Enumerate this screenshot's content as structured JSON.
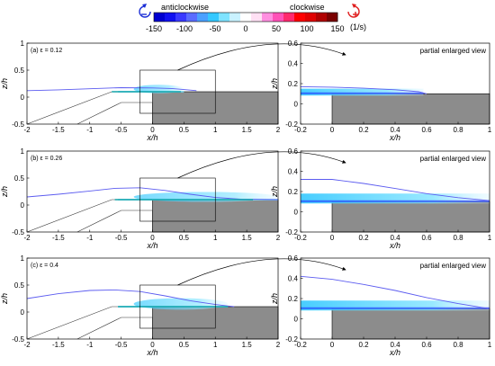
{
  "colorbar": {
    "left_label": "anticlockwise",
    "right_label": "clockwise",
    "unit": "(1/s)",
    "ticks": [
      -150,
      -100,
      -50,
      0,
      50,
      100,
      150
    ],
    "tick_labels": [
      "-150",
      "-100",
      "-50",
      "0",
      "50",
      "100",
      "150"
    ],
    "range": [
      -150,
      150
    ],
    "colors": [
      "#0000d0",
      "#1111f0",
      "#3a3aff",
      "#5a6cff",
      "#4aa0ff",
      "#34c8ff",
      "#7fe3ff",
      "#c9f2ff",
      "#ffffff",
      "#ffe0f4",
      "#ff8fe0",
      "#ff52b8",
      "#ff2a6e",
      "#ff0000",
      "#e00000",
      "#b00000",
      "#7a0000"
    ],
    "anticlockwise_icon_color": "#1c2fd6",
    "clockwise_icon_color": "#e02020"
  },
  "chart_data": [
    {
      "panel": "full",
      "label": "(a) ε = 0.12",
      "epsilon": 0.12,
      "type": "line",
      "xlabel": "x/h",
      "ylabel": "z/h",
      "xlim": [
        -2,
        2
      ],
      "ylim": [
        -0.5,
        1
      ],
      "xticks": [
        "-2",
        "-1.5",
        "-1",
        "-0.5",
        "0",
        "0.5",
        "1",
        "1.5",
        "2"
      ],
      "yticks": [
        "-0.5",
        "0",
        "0.5",
        "1"
      ],
      "series": [
        {
          "role": "boundary-curve",
          "color": "#5c5cf0",
          "x": [
            -2,
            -1.5,
            -1,
            -0.5,
            0,
            0.3,
            0.5,
            0.7
          ],
          "y": [
            0.12,
            0.135,
            0.155,
            0.175,
            0.17,
            0.16,
            0.14,
            0.12
          ]
        },
        {
          "role": "jet-centerline",
          "color": "#14a3a8",
          "x": [
            -0.65,
            0.45
          ],
          "y": [
            0.1,
            0.1
          ]
        }
      ],
      "zoom_box": {
        "x": [
          -0.2,
          1
        ],
        "y": [
          -0.3,
          0.5
        ]
      },
      "step_height": 0.1,
      "jet_end": 0.5
    },
    {
      "panel": "zoom",
      "title": "partial enlarged view",
      "type": "line",
      "xlabel": "x/h",
      "ylabel": "z/h",
      "xlim": [
        -0.2,
        1
      ],
      "ylim": [
        -0.2,
        0.6
      ],
      "xticks": [
        "-0.2",
        "0",
        "0.2",
        "0.4",
        "0.6",
        "0.8",
        "1"
      ],
      "yticks": [
        "-0.2",
        "0",
        "0.2",
        "0.4",
        "0.6"
      ],
      "series": [
        {
          "role": "boundary-curve",
          "color": "#5c5cf0",
          "x": [
            -0.2,
            0,
            0.2,
            0.4,
            0.55,
            0.6
          ],
          "y": [
            0.17,
            0.165,
            0.155,
            0.14,
            0.12,
            0.1
          ]
        }
      ],
      "step_height": 0.1,
      "jet_end": 0.58
    },
    {
      "panel": "full",
      "label": "(b) ε = 0.26",
      "epsilon": 0.26,
      "type": "line",
      "xlabel": "x/h",
      "ylabel": "z/h",
      "xlim": [
        -2,
        2
      ],
      "ylim": [
        -0.5,
        1
      ],
      "xticks": [
        "-2",
        "-1.5",
        "-1",
        "-0.5",
        "0",
        "0.5",
        "1",
        "1.5",
        "2"
      ],
      "yticks": [
        "-0.5",
        "0",
        "0.5",
        "1"
      ],
      "series": [
        {
          "role": "boundary-curve",
          "color": "#5c5cf0",
          "x": [
            -2,
            -1.5,
            -1,
            -0.6,
            -0.2,
            0.2,
            0.6,
            1,
            1.4,
            2
          ],
          "y": [
            0.15,
            0.2,
            0.26,
            0.31,
            0.32,
            0.27,
            0.2,
            0.14,
            0.11,
            0.1
          ]
        },
        {
          "role": "jet-centerline",
          "color": "#14a3a8",
          "x": [
            -0.6,
            1.6
          ],
          "y": [
            0.1,
            0.1
          ]
        }
      ],
      "zoom_box": {
        "x": [
          -0.2,
          1
        ],
        "y": [
          -0.3,
          0.5
        ]
      },
      "step_height": 0.1,
      "jet_end": 2
    },
    {
      "panel": "zoom",
      "title": "partial enlarged view",
      "type": "line",
      "xlabel": "x/h",
      "ylabel": "z/h",
      "xlim": [
        -0.2,
        1
      ],
      "ylim": [
        -0.2,
        0.6
      ],
      "xticks": [
        "-0.2",
        "0",
        "0.2",
        "0.4",
        "0.6",
        "0.8",
        "1"
      ],
      "yticks": [
        "-0.2",
        "0",
        "0.2",
        "0.4",
        "0.6"
      ],
      "series": [
        {
          "role": "boundary-curve",
          "color": "#5c5cf0",
          "x": [
            -0.2,
            0,
            0.2,
            0.4,
            0.6,
            0.8,
            1
          ],
          "y": [
            0.32,
            0.32,
            0.28,
            0.23,
            0.18,
            0.14,
            0.11
          ]
        }
      ],
      "step_height": 0.1,
      "jet_end": 1
    },
    {
      "panel": "full",
      "label": "(c) ε = 0.4",
      "epsilon": 0.4,
      "type": "line",
      "xlabel": "x/h",
      "ylabel": "z/h",
      "xlim": [
        -2,
        2
      ],
      "ylim": [
        -0.5,
        1
      ],
      "xticks": [
        "-2",
        "-1.5",
        "-1",
        "-0.5",
        "0",
        "0.5",
        "1",
        "1.5",
        "2"
      ],
      "yticks": [
        "-0.5",
        "0",
        "0.5",
        "1"
      ],
      "series": [
        {
          "role": "boundary-curve",
          "color": "#5c5cf0",
          "x": [
            -2,
            -1.5,
            -1,
            -0.6,
            -0.2,
            0.2,
            0.6,
            1,
            1.3
          ],
          "y": [
            0.25,
            0.34,
            0.4,
            0.41,
            0.38,
            0.3,
            0.21,
            0.14,
            0.1
          ]
        },
        {
          "role": "jet-centerline",
          "color": "#14a3a8",
          "x": [
            -0.55,
            1.2
          ],
          "y": [
            0.1,
            0.1
          ]
        }
      ],
      "zoom_box": {
        "x": [
          -0.2,
          1
        ],
        "y": [
          -0.3,
          0.5
        ]
      },
      "step_height": 0.1,
      "jet_end": 1.2
    },
    {
      "panel": "zoom",
      "title": "partial enlarged view",
      "type": "line",
      "xlabel": "x/h",
      "ylabel": "z/h",
      "xlim": [
        -0.2,
        1
      ],
      "ylim": [
        -0.2,
        0.6
      ],
      "xticks": [
        "-0.2",
        "0",
        "0.2",
        "0.4",
        "0.6",
        "0.8",
        "1"
      ],
      "yticks": [
        "-0.2",
        "0",
        "0.2",
        "0.4",
        "0.6"
      ],
      "series": [
        {
          "role": "boundary-curve",
          "color": "#5c5cf0",
          "x": [
            -0.2,
            0,
            0.2,
            0.4,
            0.6,
            0.8,
            1
          ],
          "y": [
            0.42,
            0.39,
            0.34,
            0.28,
            0.21,
            0.15,
            0.1
          ]
        }
      ],
      "step_height": 0.1,
      "jet_end": 1
    }
  ]
}
